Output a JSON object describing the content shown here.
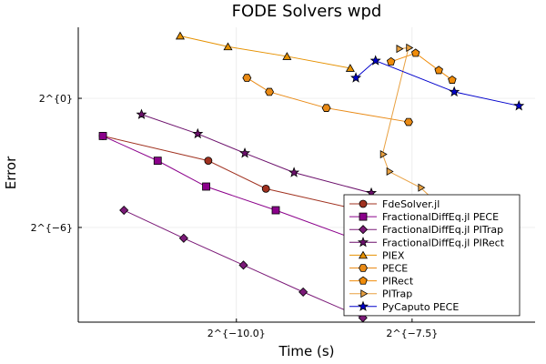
{
  "chart_data": {
    "type": "line",
    "title": "FODE Solvers wpd",
    "xlabel": "Time (s)",
    "ylabel": "Error",
    "x_scale": "log2",
    "y_scale": "log2",
    "x_ticks": [
      {
        "value": -10.0,
        "label": "2^{−10.0}"
      },
      {
        "value": -7.5,
        "label": "2^{−7.5}"
      }
    ],
    "y_ticks": [
      {
        "value": 0,
        "label": "2^{0}"
      },
      {
        "value": -6,
        "label": "2^{−6}"
      }
    ],
    "xlim": [
      -12.25,
      -5.75
    ],
    "ylim": [
      -10.4,
      3.3
    ],
    "grid": true,
    "legend_position": "bottom-right",
    "series": [
      {
        "name": "FdeSolver.jl",
        "color": "#a0311f",
        "marker": "circle",
        "points": [
          [
            -11.9,
            -1.75
          ],
          [
            -10.4,
            -2.9
          ],
          [
            -9.58,
            -4.2
          ],
          [
            -8.23,
            -5.2
          ],
          [
            -7.58,
            -6.45
          ],
          [
            -6.85,
            -6.65
          ]
        ]
      },
      {
        "name": "FractionalDiffEq.jl PECE",
        "color": "#8b008b",
        "marker": "square",
        "points": [
          [
            -11.9,
            -1.75
          ],
          [
            -11.12,
            -2.9
          ],
          [
            -10.43,
            -4.1
          ],
          [
            -9.44,
            -5.2
          ],
          [
            -8.35,
            -6.5
          ],
          [
            -7.18,
            -7.6
          ]
        ]
      },
      {
        "name": "FractionalDiffEq.jl PITrap",
        "color": "#7b1a78",
        "marker": "diamond",
        "points": [
          [
            -11.6,
            -5.2
          ],
          [
            -10.75,
            -6.5
          ],
          [
            -9.9,
            -7.75
          ],
          [
            -9.05,
            -9.0
          ],
          [
            -8.2,
            -10.2
          ]
        ]
      },
      {
        "name": "FractionalDiffEq.jl PIRect",
        "color": "#6b0f6b",
        "marker": "star",
        "points": [
          [
            -11.35,
            -0.75
          ],
          [
            -10.55,
            -1.65
          ],
          [
            -9.88,
            -2.55
          ],
          [
            -9.18,
            -3.45
          ],
          [
            -8.08,
            -4.4
          ]
        ]
      },
      {
        "name": "PIEX",
        "color": "#e69100",
        "marker": "triangle",
        "points": [
          [
            -10.8,
            2.9
          ],
          [
            -10.12,
            2.4
          ],
          [
            -9.28,
            1.95
          ],
          [
            -8.38,
            1.4
          ]
        ]
      },
      {
        "name": "PECE",
        "color": "#e98a15",
        "marker": "hexagon",
        "points": [
          [
            -9.85,
            0.95
          ],
          [
            -9.53,
            0.3
          ],
          [
            -8.72,
            -0.45
          ],
          [
            -7.55,
            -1.1
          ]
        ]
      },
      {
        "name": "PIRect",
        "color": "#f08c0a",
        "marker": "pentagon",
        "points": [
          [
            -7.8,
            1.7
          ],
          [
            -7.45,
            2.1
          ],
          [
            -7.12,
            1.3
          ],
          [
            -6.93,
            0.85
          ]
        ]
      },
      {
        "name": "PITrap",
        "color": "#e8a040",
        "marker": "triangle-right",
        "points": [
          [
            -7.69,
            2.3
          ],
          [
            -7.55,
            2.35
          ],
          [
            -7.92,
            -2.6
          ],
          [
            -7.83,
            -3.4
          ],
          [
            -7.38,
            -4.15
          ],
          [
            -7.1,
            -5.0
          ]
        ]
      },
      {
        "name": "PyCaputo PECE",
        "color": "#0000cc",
        "marker": "star",
        "points": [
          [
            -8.3,
            0.95
          ],
          [
            -8.02,
            1.75
          ],
          [
            -6.9,
            0.3
          ],
          [
            -5.98,
            -0.35
          ]
        ]
      }
    ]
  }
}
